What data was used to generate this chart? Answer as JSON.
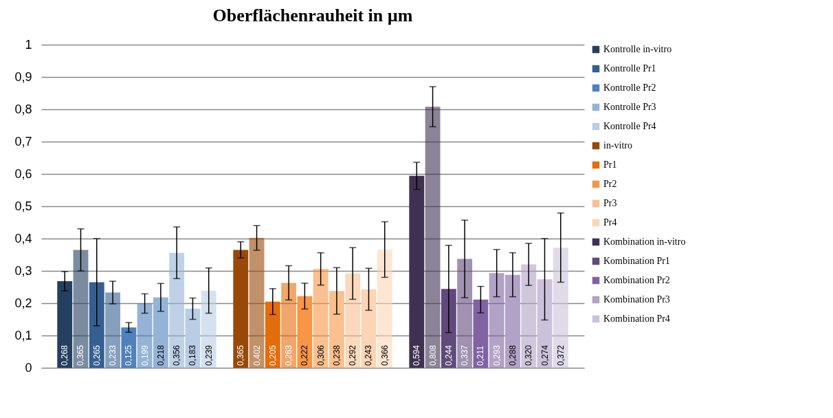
{
  "chart_data": {
    "type": "bar",
    "title": "Oberflächenrauheit in µm",
    "categories": [
      null,
      null,
      null
    ],
    "ylim": [
      0,
      1
    ],
    "yticks": [
      0,
      {
        "value": 0.1,
        "label": "0,1"
      },
      {
        "value": 0.2,
        "label": "0,2"
      },
      {
        "value": 0.3,
        "label": "0,3"
      },
      {
        "value": 0.4,
        "label": "0,4"
      },
      {
        "value": 0.5,
        "label": "0,5"
      },
      {
        "value": 0.6,
        "label": "0,6"
      },
      {
        "value": 0.7,
        "label": "0,7"
      },
      {
        "value": 0.8,
        "label": "0,8"
      },
      {
        "value": 0.9,
        "label": "0,9"
      },
      1
    ],
    "grid": "y",
    "legend": "right",
    "series": [
      {
        "name": "Kontrolle in-vitro",
        "color": "#243f60",
        "values": [
          0.268,
          null,
          null
        ],
        "errors": [
          0.03,
          null,
          null
        ],
        "value_labels": [
          "0,268",
          null,
          null
        ]
      },
      {
        "color": "#243f60",
        "values": [
          0.365,
          null,
          null
        ],
        "errors": [
          0.065,
          null,
          null
        ],
        "value_labels": [
          "0,365",
          null,
          null
        ]
      },
      {
        "name": "Kontrolle Pr1",
        "color": "#365f91",
        "values": [
          0.265,
          null,
          null
        ],
        "errors": [
          0.135,
          null,
          null
        ],
        "value_labels": [
          "0,265",
          null,
          null
        ]
      },
      {
        "color": "#365f91",
        "values": [
          0.233,
          null,
          null
        ],
        "errors": [
          0.035,
          null,
          null
        ],
        "value_labels": [
          "0,233",
          null,
          null
        ]
      },
      {
        "name": "Kontrolle Pr2",
        "color": "#4f81bd",
        "values": [
          0.125,
          null,
          null
        ],
        "errors": [
          0.015,
          null,
          null
        ],
        "value_labels": [
          "0,125",
          null,
          null
        ]
      },
      {
        "color": "#4f81bd",
        "values": [
          0.199,
          null,
          null
        ],
        "errors": [
          0.03,
          null,
          null
        ],
        "value_labels": [
          "0,199",
          null,
          null
        ]
      },
      {
        "name": "Kontrolle Pr3",
        "color": "#95b3d7",
        "values": [
          0.218,
          null,
          null
        ],
        "errors": [
          0.043,
          null,
          null
        ],
        "value_labels": [
          "0,218",
          null,
          null
        ]
      },
      {
        "color": "#95b3d7",
        "values": [
          0.356,
          null,
          null
        ],
        "errors": [
          0.08,
          null,
          null
        ],
        "value_labels": [
          "0,356",
          null,
          null
        ]
      },
      {
        "name": "Kontrolle Pr4",
        "color": "#b9cde5",
        "values": [
          0.183,
          null,
          null
        ],
        "errors": [
          0.033,
          null,
          null
        ],
        "value_labels": [
          "0,183",
          null,
          null
        ]
      },
      {
        "color": "#b9cde5",
        "values": [
          0.239,
          null,
          null
        ],
        "errors": [
          0.07,
          null,
          null
        ],
        "value_labels": [
          "0,239",
          null,
          null
        ]
      },
      {
        "name": "in-vitro",
        "color": "#984807",
        "values": [
          null,
          0.365,
          null
        ],
        "errors": [
          null,
          0.025,
          null
        ],
        "value_labels": [
          null,
          "0,365",
          null
        ]
      },
      {
        "color": "#984807",
        "values": [
          null,
          0.402,
          null
        ],
        "errors": [
          null,
          0.038,
          null
        ],
        "value_labels": [
          null,
          "0,402",
          null
        ]
      },
      {
        "name": "Pr1",
        "color": "#e46c0a",
        "values": [
          null,
          0.205,
          null
        ],
        "errors": [
          null,
          0.04,
          null
        ],
        "value_labels": [
          null,
          "0,205",
          null
        ]
      },
      {
        "color": "#e46c0a",
        "values": [
          null,
          0.263,
          null
        ],
        "errors": [
          null,
          0.053,
          null
        ],
        "value_labels": [
          null,
          "0,263",
          null
        ]
      },
      {
        "name": "Pr2",
        "color": "#f79646",
        "values": [
          null,
          0.222,
          null
        ],
        "errors": [
          null,
          0.04,
          null
        ],
        "value_labels": [
          null,
          "0,222",
          null
        ]
      },
      {
        "color": "#f79646",
        "values": [
          null,
          0.306,
          null
        ],
        "errors": [
          null,
          0.05,
          null
        ],
        "value_labels": [
          null,
          "0,306",
          null
        ]
      },
      {
        "name": "Pr3",
        "color": "#fac090",
        "values": [
          null,
          0.238,
          null
        ],
        "errors": [
          null,
          0.072,
          null
        ],
        "value_labels": [
          null,
          "0,238",
          null
        ]
      },
      {
        "color": "#fac090",
        "values": [
          null,
          0.292,
          null
        ],
        "errors": [
          null,
          0.08,
          null
        ],
        "value_labels": [
          null,
          "0,292",
          null
        ]
      },
      {
        "name": "Pr4",
        "color": "#fcd5b5",
        "values": [
          null,
          0.243,
          null
        ],
        "errors": [
          null,
          0.065,
          null
        ],
        "value_labels": [
          null,
          "0,243",
          null
        ]
      },
      {
        "color": "#fcd5b5",
        "values": [
          null,
          0.366,
          null
        ],
        "errors": [
          null,
          0.086,
          null
        ],
        "value_labels": [
          null,
          "0,366",
          null
        ]
      },
      {
        "name": "Kombination in-vitro",
        "color": "#3f3151",
        "values": [
          null,
          null,
          0.594
        ],
        "errors": [
          null,
          null,
          0.042
        ],
        "value_labels": [
          null,
          null,
          "0,594"
        ]
      },
      {
        "color": "#3f3151",
        "values": [
          null,
          null,
          0.808
        ],
        "errors": [
          null,
          null,
          0.062
        ],
        "value_labels": [
          null,
          null,
          "0,808"
        ]
      },
      {
        "name": "Kombination Pr1",
        "color": "#604a7b",
        "values": [
          null,
          null,
          0.244
        ],
        "errors": [
          null,
          null,
          0.135
        ],
        "value_labels": [
          null,
          null,
          "0,244"
        ]
      },
      {
        "color": "#604a7b",
        "values": [
          null,
          null,
          0.337
        ],
        "errors": [
          null,
          null,
          0.12
        ],
        "value_labels": [
          null,
          null,
          "0,337"
        ]
      },
      {
        "name": "Kombination Pr2",
        "color": "#8064a2",
        "values": [
          null,
          null,
          0.211
        ],
        "errors": [
          null,
          null,
          0.041
        ],
        "value_labels": [
          null,
          null,
          "0,211"
        ]
      },
      {
        "color": "#8064a2",
        "values": [
          null,
          null,
          0.293
        ],
        "errors": [
          null,
          null,
          0.073
        ],
        "value_labels": [
          null,
          null,
          "0,293"
        ]
      },
      {
        "name": "Kombination Pr3",
        "color": "#b3a2c7",
        "values": [
          null,
          null,
          0.288
        ],
        "errors": [
          null,
          null,
          0.068
        ],
        "value_labels": [
          null,
          null,
          "0,288"
        ]
      },
      {
        "color": "#b3a2c7",
        "values": [
          null,
          null,
          0.32
        ],
        "errors": [
          null,
          null,
          0.065
        ],
        "value_labels": [
          null,
          null,
          "0,320"
        ]
      },
      {
        "name": "Kombination Pr4",
        "color": "#ccc1da",
        "values": [
          null,
          null,
          0.274
        ],
        "errors": [
          null,
          null,
          0.126
        ],
        "value_labels": [
          null,
          null,
          "0,274"
        ]
      },
      {
        "color": "#ccc1da",
        "values": [
          null,
          null,
          0.372
        ],
        "errors": [
          null,
          null,
          0.107
        ],
        "value_labels": [
          null,
          null,
          "0,372"
        ]
      }
    ]
  }
}
